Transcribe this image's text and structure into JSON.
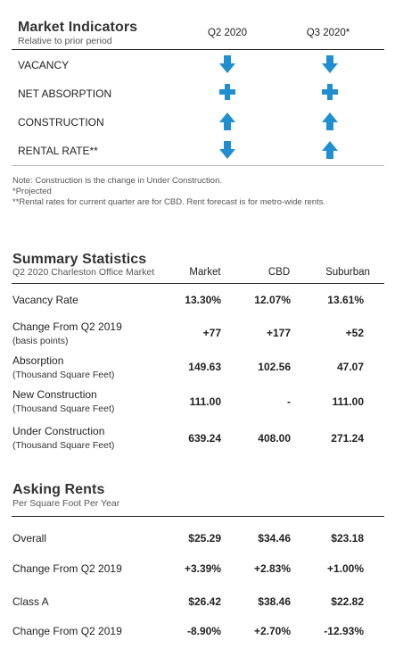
{
  "indicators": {
    "title": "Market Indicators",
    "subtitle": "Relative to prior period",
    "columns": [
      "Q2 2020",
      "Q3 2020*"
    ],
    "rows": [
      {
        "label": "VACANCY",
        "q2": "down-arrow-icon",
        "q3": "down-arrow-icon"
      },
      {
        "label": "NET ABSORPTION",
        "q2": "plus-icon",
        "q3": "plus-icon"
      },
      {
        "label": "CONSTRUCTION",
        "q2": "up-arrow-icon",
        "q3": "up-arrow-icon"
      },
      {
        "label": "RENTAL RATE**",
        "q2": "down-arrow-icon",
        "q3": "up-arrow-icon"
      }
    ],
    "notes": [
      "Note: Construction is the change in Under Construction.",
      "*Projected",
      "**Rental rates for current quarter are for CBD. Rent forecast is for metro-wide rents."
    ],
    "icon_color": "#1f8fd1"
  },
  "summary": {
    "title": "Summary Statistics",
    "subtitle": "Q2 2020 Charleston Office Market",
    "columns": [
      "Market",
      "CBD",
      "Suburban"
    ],
    "rows": [
      {
        "label": "Vacancy Rate",
        "sub": "",
        "values": [
          "13.30%",
          "12.07%",
          "13.61%"
        ]
      },
      {
        "label": "Change From Q2 2019",
        "sub": "(basis points)",
        "values": [
          "+77",
          "+177",
          "+52"
        ]
      },
      {
        "label": "Absorption",
        "sub": "(Thousand Square Feet)",
        "values": [
          "149.63",
          "102.56",
          "47.07"
        ]
      },
      {
        "label": "New Construction",
        "sub": "(Thousand Square Feet)",
        "values": [
          "111.00",
          "-",
          "111.00"
        ]
      },
      {
        "label": "Under Construction",
        "sub": "(Thousand Square Feet)",
        "values": [
          "639.24",
          "408.00",
          "271.24"
        ]
      }
    ]
  },
  "rents": {
    "title": "Asking Rents",
    "subtitle": "Per Square Foot Per Year",
    "rows": [
      {
        "label": "Overall",
        "values": [
          "$25.29",
          "$34.46",
          "$23.18"
        ]
      },
      {
        "label": "Change From Q2 2019",
        "values": [
          "+3.39%",
          "+2.83%",
          "+1.00%"
        ]
      },
      {
        "label": "Class A",
        "values": [
          "$26.42",
          "$38.46",
          "$22.82"
        ]
      },
      {
        "label": "Change From Q2 2019",
        "values": [
          "-8.90%",
          "+2.70%",
          "-12.93%"
        ]
      }
    ]
  }
}
